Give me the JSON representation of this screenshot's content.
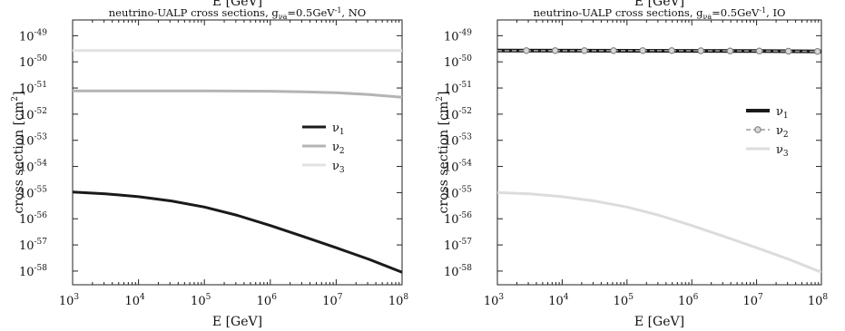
{
  "chart_data": [
    {
      "type": "line",
      "title_parts": {
        "prefix": "neutrino-UALP cross sections, g",
        "subscript": "νa",
        "eq": "=0.5GeV",
        "sup": "-1",
        "suffix": ", NO"
      },
      "top_clipped_label": "E [GeV]",
      "xlabel": "E [GeV]",
      "ylabel": "cross section [cm",
      "ylabel_sup": "2",
      "ylabel_close": "]",
      "x_scale": "log",
      "y_scale": "log",
      "xlim": [
        1000,
        100000000
      ],
      "ylim": [
        3e-59,
        4e-49
      ],
      "x_tick_base": "10",
      "x_tick_exponents": [
        "3",
        "4",
        "5",
        "6",
        "7",
        "8"
      ],
      "y_tick_base": "10",
      "y_tick_exponents": [
        "-49",
        "-50",
        "-51",
        "-52",
        "-53",
        "-54",
        "-55",
        "-56",
        "-57",
        "-58"
      ],
      "legend_position": "right",
      "series": [
        {
          "name": "ν1",
          "name_base": "ν",
          "name_sub": "1",
          "color": "#1a1a1a",
          "width": 3,
          "dash": "",
          "markers": false,
          "x": [
            1000,
            3162,
            10000,
            31623,
            100000,
            316228,
            1000000,
            3162278,
            10000000,
            31622777,
            100000000
          ],
          "y": [
            1.05e-55,
            9e-56,
            7e-56,
            4.8e-56,
            2.8e-56,
            1.35e-56,
            5.5e-57,
            2.1e-57,
            7.8e-58,
            2.8e-58,
            9e-59
          ]
        },
        {
          "name": "ν2",
          "name_base": "ν",
          "name_sub": "2",
          "color": "#b4b4b4",
          "width": 3,
          "dash": "",
          "markers": false,
          "x": [
            1000,
            10000,
            100000,
            1000000,
            3162278,
            10000000,
            31622777,
            100000000
          ],
          "y": [
            7.8e-52,
            7.8e-52,
            7.7e-52,
            7.5e-52,
            7.2e-52,
            6.6e-52,
            5.6e-52,
            4.4e-52
          ]
        },
        {
          "name": "ν3",
          "name_base": "ν",
          "name_sub": "3",
          "color": "#e2e2e2",
          "width": 3,
          "dash": "",
          "markers": false,
          "x": [
            1000,
            100000000
          ],
          "y": [
            2.7e-50,
            2.7e-50
          ]
        }
      ]
    },
    {
      "type": "line",
      "title_parts": {
        "prefix": "neutrino-UALP cross sections, g",
        "subscript": "νa",
        "eq": "=0.5GeV",
        "sup": "-1",
        "suffix": ", IO"
      },
      "top_clipped_label": "E [GeV]",
      "xlabel": "E [GeV]",
      "ylabel": "cross section [cm",
      "ylabel_sup": "2",
      "ylabel_close": "]",
      "x_scale": "log",
      "y_scale": "log",
      "xlim": [
        1000,
        100000000
      ],
      "ylim": [
        3e-59,
        4e-49
      ],
      "x_tick_base": "10",
      "x_tick_exponents": [
        "3",
        "4",
        "5",
        "6",
        "7",
        "8"
      ],
      "y_tick_base": "10",
      "y_tick_exponents": [
        "-49",
        "-50",
        "-51",
        "-52",
        "-53",
        "-54",
        "-55",
        "-56",
        "-57",
        "-58"
      ],
      "legend_position": "right",
      "series": [
        {
          "name": "ν1",
          "name_base": "ν",
          "name_sub": "1",
          "color": "#1a1a1a",
          "width": 4,
          "dash": "",
          "markers": false,
          "x": [
            1000,
            10000000,
            100000000
          ],
          "y": [
            2.7e-50,
            2.6e-50,
            2.5e-50
          ]
        },
        {
          "name": "ν2",
          "name_base": "ν",
          "name_sub": "2",
          "color": "#9a9a9a",
          "width": 1.6,
          "dash": "5,3",
          "markers": true,
          "x": [
            1000,
            2800,
            7800,
            22000,
            62000,
            175000,
            490000,
            1380000,
            3900000,
            11000000,
            31000000,
            87000000
          ],
          "y": [
            2.7e-50,
            2.7e-50,
            2.7e-50,
            2.7e-50,
            2.7e-50,
            2.7e-50,
            2.7e-50,
            2.65e-50,
            2.62e-50,
            2.6e-50,
            2.55e-50,
            2.5e-50
          ]
        },
        {
          "name": "ν3",
          "name_base": "ν",
          "name_sub": "3",
          "color": "#dcdcdc",
          "width": 3,
          "dash": "",
          "markers": false,
          "x": [
            1000,
            3162,
            10000,
            31623,
            100000,
            316228,
            1000000,
            3162278,
            10000000,
            31622777,
            100000000
          ],
          "y": [
            1e-55,
            9e-56,
            7e-56,
            4.8e-56,
            2.8e-56,
            1.35e-56,
            5.5e-57,
            2.1e-57,
            7.8e-58,
            2.8e-58,
            9e-59
          ]
        }
      ]
    }
  ]
}
